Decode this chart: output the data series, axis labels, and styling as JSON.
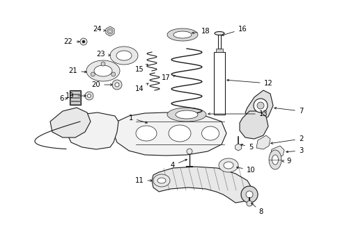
{
  "bg_color": "#ffffff",
  "fig_width": 4.89,
  "fig_height": 3.6,
  "dpi": 100,
  "line_color": "#1a1a1a",
  "text_color": "#000000",
  "font_size": 7.2,
  "arrow_lw": 0.6,
  "arrow_ms": 5
}
